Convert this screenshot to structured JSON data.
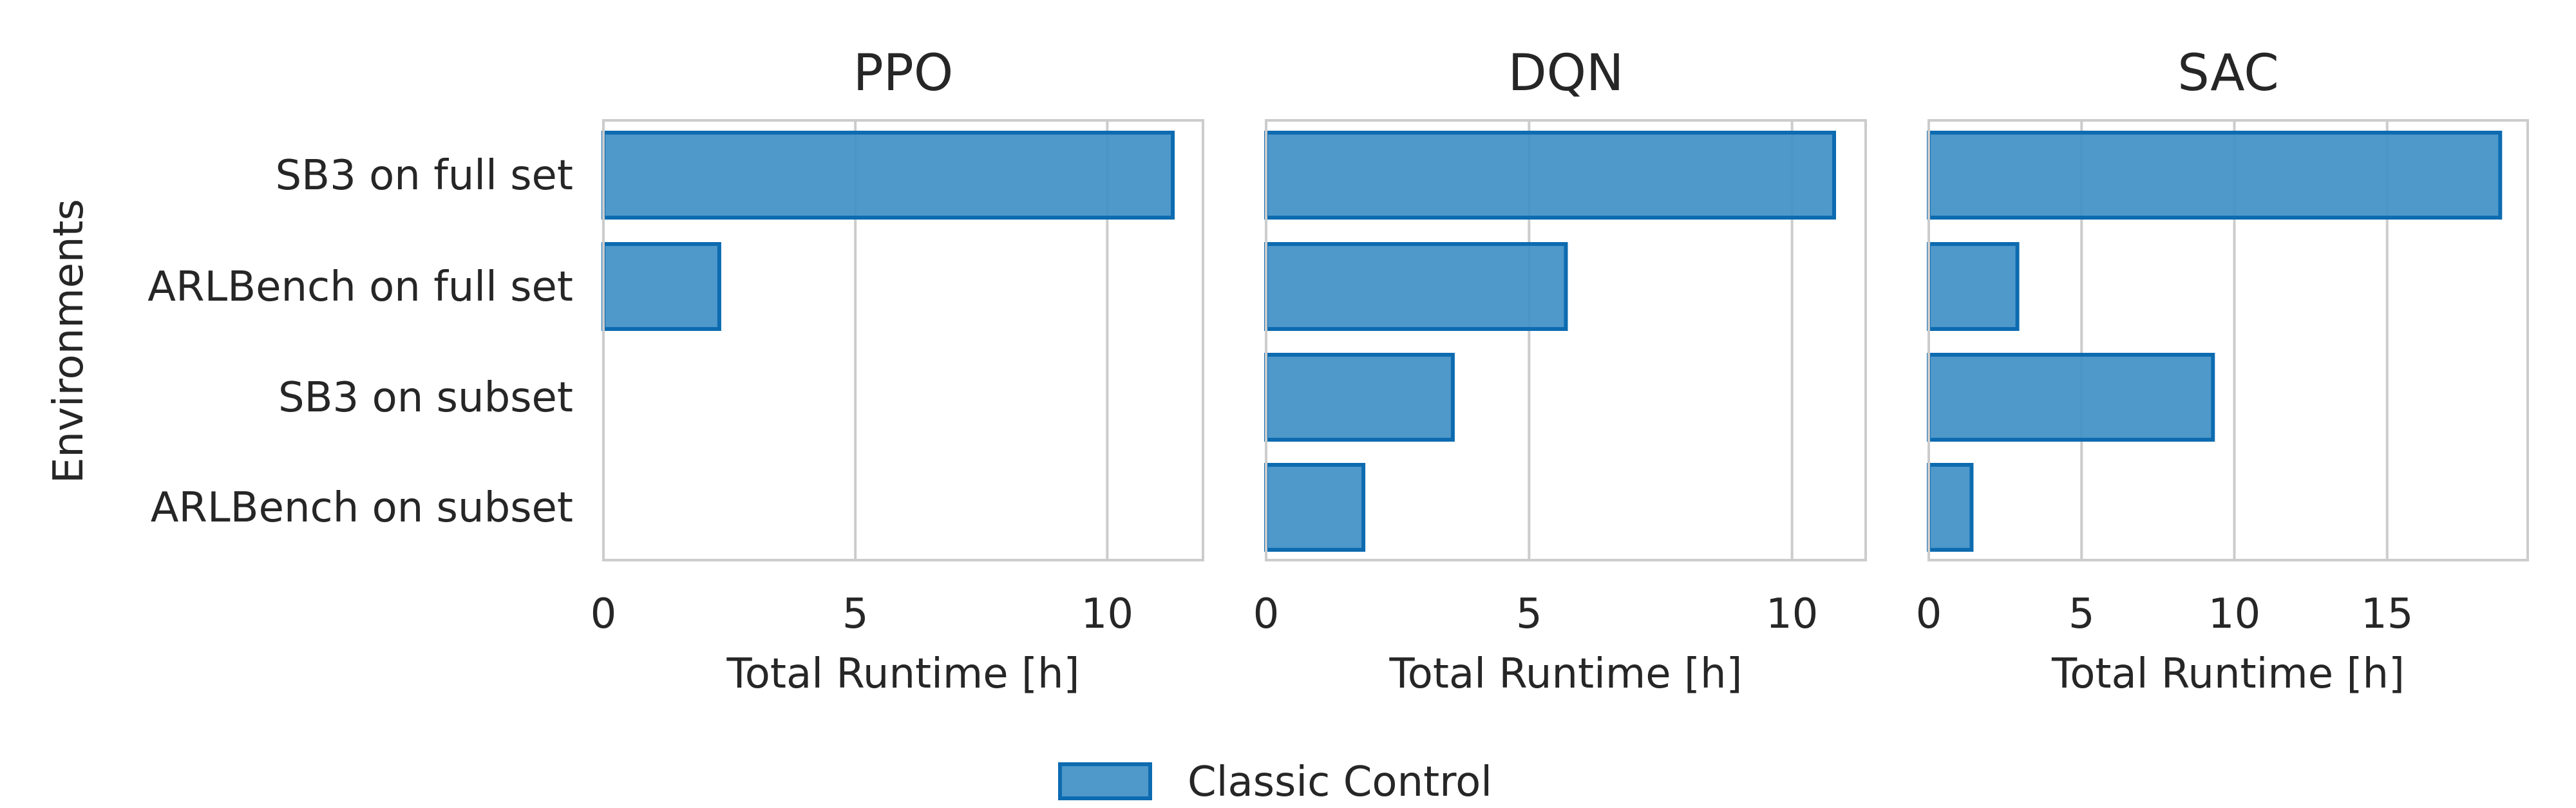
{
  "chart_data": {
    "type": "bar",
    "orientation": "horizontal",
    "ylabel": "Environments",
    "categories": [
      "SB3 on full set",
      "ARLBench on full set",
      "SB3 on subset",
      "ARLBench on subset"
    ],
    "legend": {
      "label": "Classic Control",
      "placement": "bottom-center"
    },
    "grid": {
      "x": true,
      "y": false
    },
    "colors": {
      "fill": "#3f8fc5",
      "edge": "#0d6bb0",
      "grid": "#cccccc",
      "frame": "#cccccc",
      "text": "#262626"
    },
    "panels": [
      {
        "title": "PPO",
        "xlabel": "Total Runtime [h]",
        "xlim": [
          0,
          11.9
        ],
        "xticks": [
          0,
          5,
          10
        ],
        "values": [
          11.3,
          2.3,
          null,
          null
        ]
      },
      {
        "title": "DQN",
        "xlabel": "Total Runtime [h]",
        "xlim": [
          0,
          11.4
        ],
        "xticks": [
          0,
          5,
          10
        ],
        "values": [
          10.8,
          5.7,
          3.55,
          1.85
        ]
      },
      {
        "title": "SAC",
        "xlabel": "Total Runtime [h]",
        "xlim": [
          0,
          19.6
        ],
        "xticks": [
          0,
          5,
          10,
          15
        ],
        "values": [
          18.7,
          2.9,
          9.3,
          1.4
        ]
      }
    ]
  }
}
